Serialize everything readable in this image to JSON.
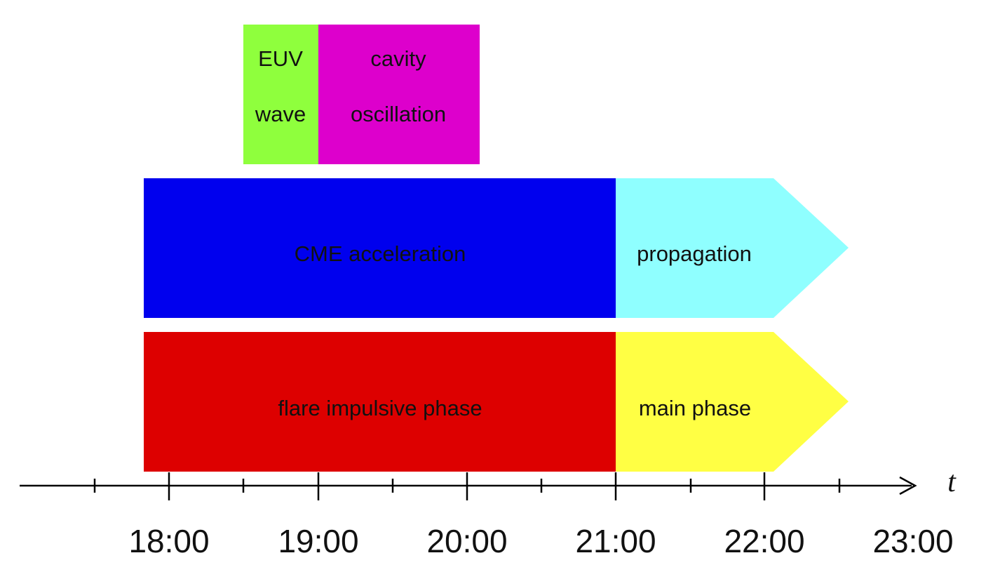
{
  "blocks": {
    "euv_wave": {
      "line1": "EUV",
      "line2": "wave",
      "color": "#8FFF3D"
    },
    "cavity_oscillation": {
      "line1": "cavity",
      "line2": "oscillation",
      "color": "#DD00CC"
    },
    "cme_acceleration": {
      "label": "CME acceleration",
      "color": "#0000EE"
    },
    "propagation": {
      "label": "propagation",
      "color": "#8FFFFF"
    },
    "flare_impulsive_phase": {
      "label": "flare impulsive phase",
      "color": "#DD0000"
    },
    "main_phase": {
      "label": "main phase",
      "color": "#FFFF44"
    }
  },
  "axis": {
    "symbol": "t",
    "tick_labels": [
      "18:00",
      "19:00",
      "20:00",
      "21:00",
      "22:00",
      "23:00"
    ]
  }
}
